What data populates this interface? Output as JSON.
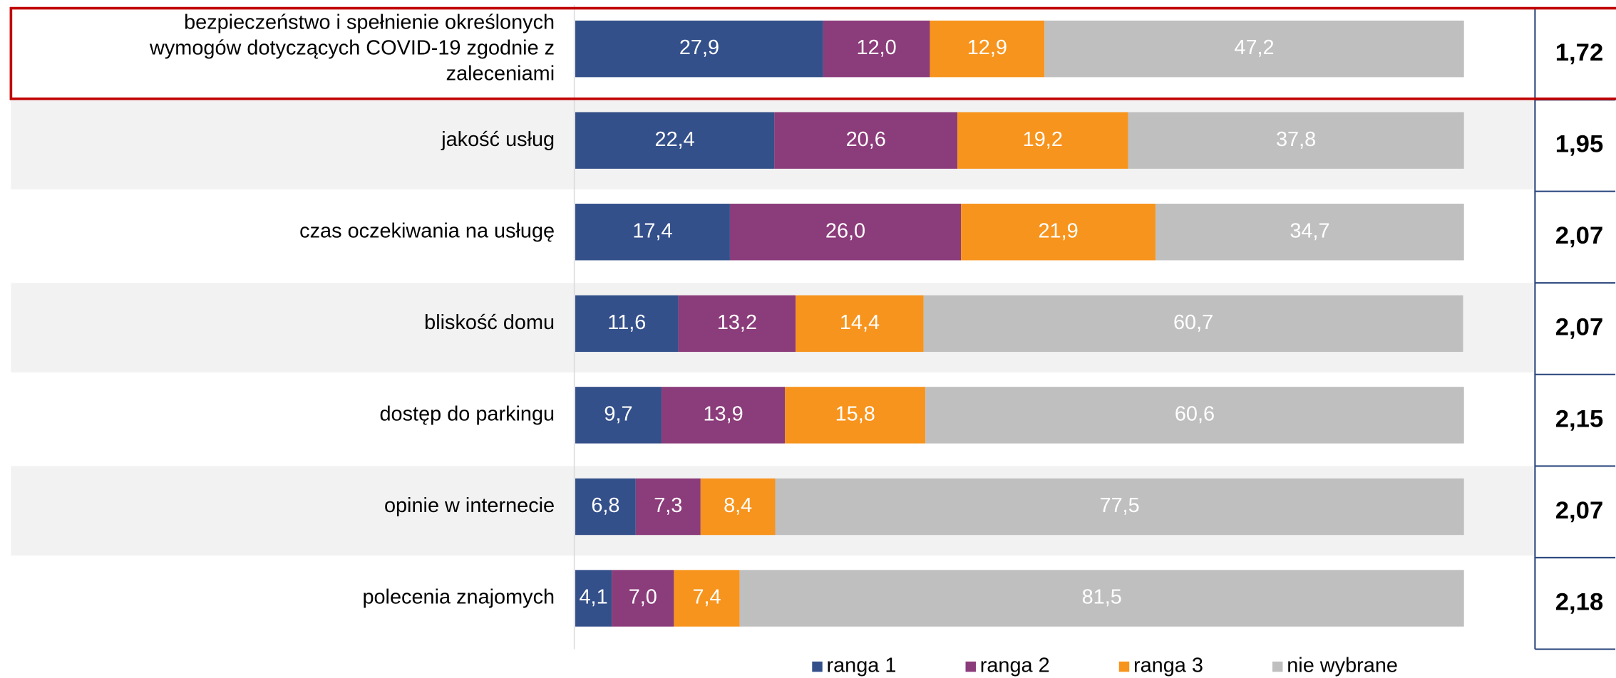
{
  "chart_data": {
    "type": "stacked_bar_horizontal",
    "categories": [
      "bezpieczeństwo i spełnienie określonych wymogów dotyczących COVID-19 zgodnie z zaleceniami",
      "jakość usług",
      "czas oczekiwania na usługę",
      "bliskość domu",
      "dostęp do parkingu",
      "opinie w internecie",
      "polecenia znajomych"
    ],
    "xlim": [
      0,
      100
    ],
    "series": [
      {
        "name": "ranga 1",
        "color": "#34508a",
        "values": [
          27.9,
          22.4,
          17.4,
          11.6,
          9.7,
          6.8,
          4.1
        ],
        "value_labels": [
          "27,9",
          "22,4",
          "17,4",
          "11,6",
          "9,7",
          "6,8",
          "4,1"
        ]
      },
      {
        "name": "ranga 2",
        "color": "#8b3c7a",
        "values": [
          12.0,
          20.6,
          26.0,
          13.2,
          13.9,
          7.3,
          7.0
        ],
        "value_labels": [
          "12,0",
          "20,6",
          "26,0",
          "13,2",
          "13,9",
          "7,3",
          "7,0"
        ]
      },
      {
        "name": "ranga 3",
        "color": "#f7941d",
        "values": [
          12.9,
          19.2,
          21.9,
          14.4,
          15.8,
          8.4,
          7.4
        ],
        "value_labels": [
          "12,9",
          "19,2",
          "21,9",
          "14,4",
          "15,8",
          "8,4",
          "7,4"
        ]
      },
      {
        "name": "nie wybrane",
        "color": "#bfbfbf",
        "values": [
          47.2,
          37.8,
          34.7,
          60.7,
          60.6,
          77.5,
          81.5
        ],
        "value_labels": [
          "47,2",
          "37,8",
          "34,7",
          "60,7",
          "60,6",
          "77,5",
          "81,5"
        ]
      }
    ],
    "averages": [
      {
        "value": 1.72,
        "label": "1,72"
      },
      {
        "value": 1.95,
        "label": "1,95"
      },
      {
        "value": 2.07,
        "label": "2,07"
      },
      {
        "value": 2.07,
        "label": "2,07"
      },
      {
        "value": 2.15,
        "label": "2,15"
      },
      {
        "value": 2.07,
        "label": "2,07"
      },
      {
        "value": 2.18,
        "label": "2,18"
      }
    ]
  }
}
